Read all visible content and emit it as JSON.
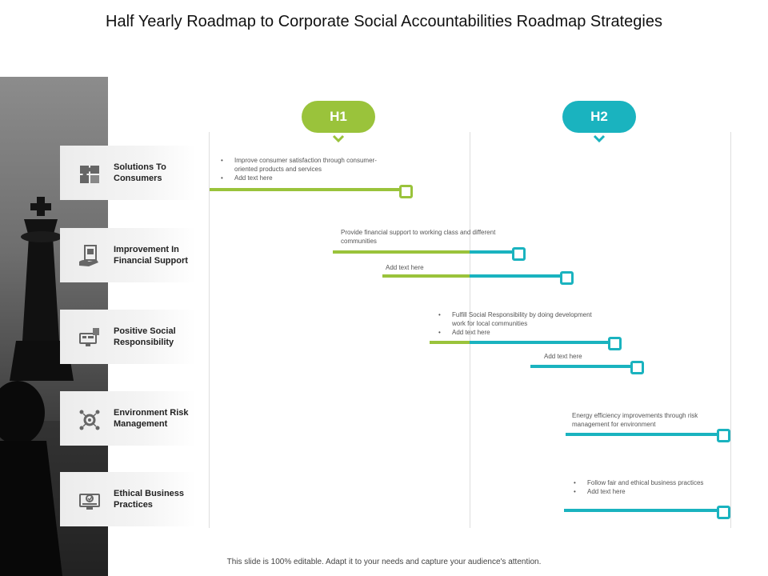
{
  "title": "Half Yearly Roadmap to Corporate Social Accountabilities Roadmap Strategies",
  "colors": {
    "green": "#9ac33b",
    "teal": "#1ab3bf"
  },
  "periods": [
    {
      "label": "H1"
    },
    {
      "label": "H2"
    }
  ],
  "rows": [
    {
      "label": "Solutions To Consumers",
      "icon": "puzzle-icon"
    },
    {
      "label": "Improvement In Financial Support",
      "icon": "financial-support-icon"
    },
    {
      "label": "Positive Social Responsibility",
      "icon": "social-monitor-icon"
    },
    {
      "label": "Environment Risk Management",
      "icon": "risk-gear-icon"
    },
    {
      "label": "Ethical Business Practices",
      "icon": "ethical-monitor-icon"
    }
  ],
  "tasks": {
    "t1": {
      "items": [
        "Improve consumer satisfaction through consumer-oriented products and services",
        "Add text here"
      ]
    },
    "t2": {
      "text": "Provide financial support to working class and different communities"
    },
    "t3": {
      "text": "Add text here"
    },
    "t4": {
      "items": [
        "Fulfill Social Responsibility by doing development work for local communities",
        "Add text here"
      ]
    },
    "t5": {
      "text": "Add text here"
    },
    "t6": {
      "text": "Energy efficiency improvements through risk management for environment"
    },
    "t7": {
      "items": [
        "Follow fair and ethical business practices",
        "Add text here"
      ]
    }
  },
  "footer": "This slide is 100% editable. Adapt it to your needs and capture your audience's attention."
}
